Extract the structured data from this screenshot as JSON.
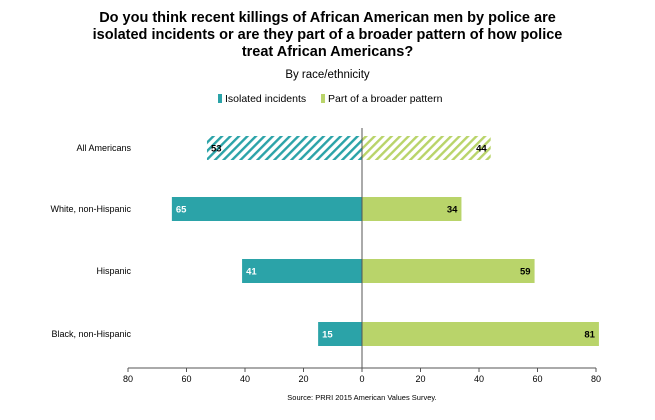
{
  "title_lines": [
    "Do you think recent killings of African American men by police are",
    "isolated incidents or are they part of a broader pattern of how police",
    "treat African Americans?"
  ],
  "subtitle": "By race/ethnicity",
  "source": "Source: PRRI 2015 American Values Survey.",
  "colors": {
    "isolated": "#2ba3a8",
    "broader": "#b9d46a"
  },
  "chart_data": {
    "type": "bar",
    "orientation": "horizontal-diverging",
    "title": "Do you think recent killings of African American men by police are isolated incidents or are they part of a broader pattern of how police treat African Americans?",
    "subtitle": "By race/ethnicity",
    "categories": [
      "All Americans",
      "White, non-Hispanic",
      "Hispanic",
      "Black, non-Hispanic"
    ],
    "series": [
      {
        "name": "Isolated incidents",
        "values": [
          53,
          65,
          41,
          15
        ],
        "direction": "left",
        "color": "#2ba3a8"
      },
      {
        "name": "Part of a broader pattern",
        "values": [
          44,
          34,
          59,
          81
        ],
        "direction": "right",
        "color": "#b9d46a"
      }
    ],
    "hatched_categories": [
      "All Americans"
    ],
    "xlim": [
      -80,
      80
    ],
    "xticks": [
      -80,
      -60,
      -40,
      -20,
      0,
      20,
      40,
      60,
      80
    ],
    "xtick_labels": [
      "80",
      "60",
      "40",
      "20",
      "0",
      "20",
      "40",
      "60",
      "80"
    ],
    "legend_position": "top-center",
    "grid": false
  }
}
